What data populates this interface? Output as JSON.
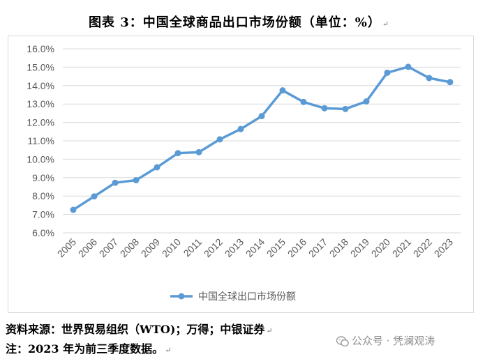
{
  "header": {
    "title": "图表 3：中国全球商品出口市场份额（单位：%）"
  },
  "chart_data": {
    "type": "line",
    "title": "",
    "xlabel": "",
    "ylabel": "",
    "x": [
      "2005",
      "2006",
      "2007",
      "2008",
      "2009",
      "2010",
      "2011",
      "2012",
      "2013",
      "2014",
      "2015",
      "2016",
      "2017",
      "2018",
      "2019",
      "2020",
      "2021",
      "2022",
      "2023"
    ],
    "series": [
      {
        "name": "中国全球出口市场份额",
        "values": [
          7.25,
          7.98,
          8.72,
          8.86,
          9.56,
          10.33,
          10.38,
          11.08,
          11.64,
          12.34,
          13.74,
          13.11,
          12.77,
          12.73,
          13.14,
          14.7,
          15.02,
          14.41,
          14.19
        ],
        "color": "#5b9bd5"
      }
    ],
    "ylim": [
      6,
      16
    ],
    "yticks": [
      "6.0%",
      "7.0%",
      "8.0%",
      "9.0%",
      "10.0%",
      "11.0%",
      "12.0%",
      "13.0%",
      "14.0%",
      "15.0%",
      "16.0%"
    ],
    "grid": true,
    "legend_position": "bottom"
  },
  "footer": {
    "source": "资料来源：世界贸易组织（WTO)；万得；中银证券",
    "note": "注：2023 年为前三季度数据。"
  },
  "watermark": {
    "text": "公众号 · 凭澜观涛",
    "icon": "wechat-icon"
  }
}
